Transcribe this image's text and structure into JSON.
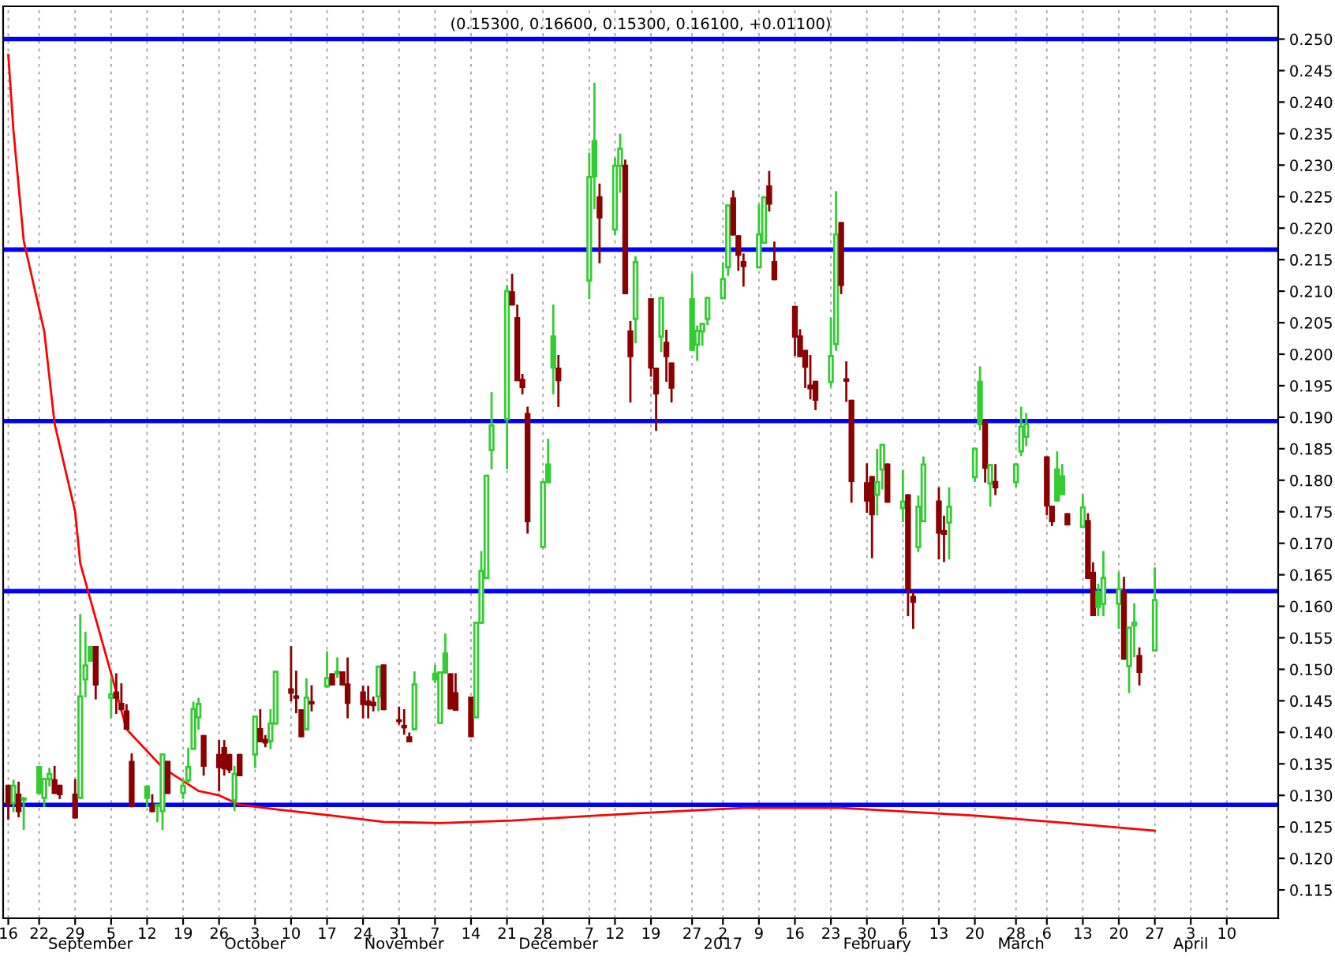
{
  "chart_data": {
    "type": "candlestick",
    "title": "(0.15300, 0.16600, 0.15300, 0.16100, +0.01100)",
    "x": [
      "2016-08-16",
      "2016-08-17",
      "2016-08-18",
      "2016-08-19",
      "2016-08-22",
      "2016-08-23",
      "2016-08-24",
      "2016-08-25",
      "2016-08-26",
      "2016-08-29",
      "2016-08-30",
      "2016-08-31",
      "2016-09-01",
      "2016-09-02",
      "2016-09-05",
      "2016-09-06",
      "2016-09-07",
      "2016-09-08",
      "2016-09-09",
      "2016-09-12",
      "2016-09-13",
      "2016-09-14",
      "2016-09-15",
      "2016-09-16",
      "2016-09-19",
      "2016-09-20",
      "2016-09-21",
      "2016-09-22",
      "2016-09-23",
      "2016-09-26",
      "2016-09-27",
      "2016-09-28",
      "2016-09-29",
      "2016-09-30",
      "2016-10-03",
      "2016-10-04",
      "2016-10-05",
      "2016-10-06",
      "2016-10-07",
      "2016-10-10",
      "2016-10-11",
      "2016-10-12",
      "2016-10-13",
      "2016-10-14",
      "2016-10-17",
      "2016-10-18",
      "2016-10-19",
      "2016-10-20",
      "2016-10-21",
      "2016-10-24",
      "2016-10-25",
      "2016-10-26",
      "2016-10-27",
      "2016-10-28",
      "2016-10-31",
      "2016-11-01",
      "2016-11-02",
      "2016-11-03",
      "2016-11-07",
      "2016-11-08",
      "2016-11-09",
      "2016-11-10",
      "2016-11-11",
      "2016-11-14",
      "2016-11-15",
      "2016-11-16",
      "2016-11-17",
      "2016-11-18",
      "2016-11-21",
      "2016-11-22",
      "2016-11-23",
      "2016-11-24",
      "2016-11-25",
      "2016-11-28",
      "2016-11-29",
      "2016-11-30",
      "2016-12-01",
      "2016-12-07",
      "2016-12-08",
      "2016-12-09",
      "2016-12-12",
      "2016-12-13",
      "2016-12-14",
      "2016-12-15",
      "2016-12-16",
      "2016-12-19",
      "2016-12-20",
      "2016-12-21",
      "2016-12-22",
      "2016-12-23",
      "2016-12-27",
      "2016-12-28",
      "2016-12-29",
      "2016-12-30",
      "2017-01-02",
      "2017-01-03",
      "2017-01-04",
      "2017-01-05",
      "2017-01-06",
      "2017-01-09",
      "2017-01-10",
      "2017-01-11",
      "2017-01-12",
      "2017-01-16",
      "2017-01-17",
      "2017-01-18",
      "2017-01-19",
      "2017-01-20",
      "2017-01-23",
      "2017-01-24",
      "2017-01-25",
      "2017-01-26",
      "2017-01-27",
      "2017-01-30",
      "2017-01-31",
      "2017-02-01",
      "2017-02-02",
      "2017-02-03",
      "2017-02-06",
      "2017-02-07",
      "2017-02-08",
      "2017-02-09",
      "2017-02-10",
      "2017-02-13",
      "2017-02-14",
      "2017-02-15",
      "2017-02-20",
      "2017-02-21",
      "2017-02-22",
      "2017-02-23",
      "2017-02-24",
      "2017-02-28",
      "2017-03-01",
      "2017-03-02",
      "2017-03-06",
      "2017-03-07",
      "2017-03-08",
      "2017-03-09",
      "2017-03-10",
      "2017-03-13",
      "2017-03-14",
      "2017-03-15",
      "2017-03-16",
      "2017-03-17",
      "2017-03-20",
      "2017-03-21",
      "2017-03-22",
      "2017-03-23",
      "2017-03-24",
      "2017-03-27"
    ],
    "ohlc": [
      [
        0.1315,
        0.1315,
        0.1263,
        0.1285
      ],
      [
        0.1288,
        0.1323,
        0.1275,
        0.1315
      ],
      [
        0.1301,
        0.132,
        0.1267,
        0.1275
      ],
      [
        0.1293,
        0.1296,
        0.1247,
        0.1295
      ],
      [
        0.1345,
        0.1345,
        0.1304,
        0.1304
      ],
      [
        0.1296,
        0.1326,
        0.1283,
        0.1326
      ],
      [
        0.1326,
        0.1342,
        0.1316,
        0.1334
      ],
      [
        0.1324,
        0.1345,
        0.1304,
        0.1304
      ],
      [
        0.1315,
        0.1315,
        0.1296,
        0.1302
      ],
      [
        0.1301,
        0.1324,
        0.1265,
        0.1265
      ],
      [
        0.1296,
        0.1586,
        0.1296,
        0.1457
      ],
      [
        0.1484,
        0.1558,
        0.1457,
        0.1506
      ],
      [
        0.1535,
        0.1535,
        0.1514,
        0.1514
      ],
      [
        0.1535,
        0.1535,
        0.1454,
        0.1476
      ],
      [
        0.1455,
        0.1486,
        0.1424,
        0.146
      ],
      [
        0.1463,
        0.1492,
        0.1431,
        0.1455
      ],
      [
        0.1445,
        0.1476,
        0.1437,
        0.1437
      ],
      [
        0.1433,
        0.1443,
        0.1406,
        0.1406
      ],
      [
        0.1353,
        0.1365,
        0.1283,
        0.1283
      ],
      [
        0.1314,
        0.1314,
        0.1283,
        0.1296
      ],
      [
        0.1283,
        0.13,
        0.1275,
        0.1275
      ],
      [
        0.1283,
        0.1285,
        0.1259,
        0.1285
      ],
      [
        0.1275,
        0.1365,
        0.1247,
        0.1365
      ],
      [
        0.1353,
        0.1353,
        0.1304,
        0.1304
      ],
      [
        0.1304,
        0.1324,
        0.1296,
        0.1315
      ],
      [
        0.1324,
        0.1374,
        0.132,
        0.1345
      ],
      [
        0.1374,
        0.1447,
        0.1374,
        0.1437
      ],
      [
        0.1424,
        0.1453,
        0.1406,
        0.1445
      ],
      [
        0.1394,
        0.1394,
        0.1333,
        0.1347
      ],
      [
        0.1364,
        0.1386,
        0.1308,
        0.1345
      ],
      [
        0.1375,
        0.1386,
        0.1333,
        0.1343
      ],
      [
        0.1364,
        0.1364,
        0.1337,
        0.1341
      ],
      [
        0.1292,
        0.1345,
        0.1277,
        0.1334
      ],
      [
        0.1364,
        0.1364,
        0.1332,
        0.1332
      ],
      [
        0.1365,
        0.1425,
        0.1345,
        0.1425
      ],
      [
        0.1405,
        0.1435,
        0.1386,
        0.1386
      ],
      [
        0.1388,
        0.1394,
        0.1378,
        0.1384
      ],
      [
        0.1386,
        0.1435,
        0.1375,
        0.1414
      ],
      [
        0.1414,
        0.1496,
        0.1414,
        0.1496
      ],
      [
        0.1468,
        0.1535,
        0.1451,
        0.1463
      ],
      [
        0.1457,
        0.1496,
        0.1432,
        0.1455
      ],
      [
        0.1435,
        0.1435,
        0.1394,
        0.1394
      ],
      [
        0.1405,
        0.1484,
        0.1405,
        0.1455
      ],
      [
        0.1448,
        0.1473,
        0.1435,
        0.1446
      ],
      [
        0.1473,
        0.1527,
        0.1473,
        0.1486
      ],
      [
        0.1492,
        0.1492,
        0.1476,
        0.1476
      ],
      [
        0.1494,
        0.1517,
        0.1488,
        0.1496
      ],
      [
        0.1495,
        0.1495,
        0.1476,
        0.1476
      ],
      [
        0.1476,
        0.1517,
        0.1424,
        0.1447
      ],
      [
        0.1463,
        0.1472,
        0.1424,
        0.1445
      ],
      [
        0.1449,
        0.1472,
        0.1424,
        0.1444
      ],
      [
        0.1447,
        0.1455,
        0.1435,
        0.1443
      ],
      [
        0.1457,
        0.1504,
        0.1435,
        0.1504
      ],
      [
        0.1506,
        0.1506,
        0.1437,
        0.1437
      ],
      [
        0.1419,
        0.1439,
        0.1414,
        0.1418
      ],
      [
        0.141,
        0.1435,
        0.1398,
        0.1408
      ],
      [
        0.1392,
        0.1398,
        0.1386,
        0.1386
      ],
      [
        0.1405,
        0.1495,
        0.1405,
        0.1476
      ],
      [
        0.1493,
        0.1505,
        0.148,
        0.1484
      ],
      [
        0.1415,
        0.1495,
        0.1415,
        0.1495
      ],
      [
        0.1525,
        0.1555,
        0.1495,
        0.1495
      ],
      [
        0.1492,
        0.1492,
        0.1438,
        0.1438
      ],
      [
        0.1462,
        0.1492,
        0.1436,
        0.1436
      ],
      [
        0.1455,
        0.1455,
        0.1394,
        0.1394
      ],
      [
        0.1424,
        0.1574,
        0.1424,
        0.1574
      ],
      [
        0.1574,
        0.1686,
        0.1574,
        0.1656
      ],
      [
        0.1645,
        0.1807,
        0.1645,
        0.1807
      ],
      [
        0.1848,
        0.1938,
        0.1819,
        0.1887
      ],
      [
        0.1897,
        0.2108,
        0.1819,
        0.21
      ],
      [
        0.2098,
        0.2126,
        0.2079,
        0.2079
      ],
      [
        0.2057,
        0.2077,
        0.1959,
        0.1959
      ],
      [
        0.1959,
        0.1967,
        0.1938,
        0.1948
      ],
      [
        0.1905,
        0.1915,
        0.1717,
        0.1735
      ],
      [
        0.1694,
        0.1797,
        0.1694,
        0.1797
      ],
      [
        0.1825,
        0.1864,
        0.1797,
        0.1797
      ],
      [
        0.2028,
        0.2077,
        0.1938,
        0.1979
      ],
      [
        0.1977,
        0.1997,
        0.1918,
        0.1959
      ],
      [
        0.2117,
        0.2318,
        0.2089,
        0.2281
      ],
      [
        0.2338,
        0.2429,
        0.2232,
        0.2282
      ],
      [
        0.2249,
        0.2269,
        0.2146,
        0.2217
      ],
      [
        0.2198,
        0.231,
        0.2191,
        0.2299
      ],
      [
        0.2299,
        0.2348,
        0.2258,
        0.2326
      ],
      [
        0.2299,
        0.2307,
        0.2097,
        0.2097
      ],
      [
        0.2036,
        0.2051,
        0.1925,
        0.1997
      ],
      [
        0.2056,
        0.2154,
        0.2019,
        0.2146
      ],
      [
        0.2087,
        0.2087,
        0.1966,
        0.1979
      ],
      [
        0.1977,
        0.1977,
        0.188,
        0.1938
      ],
      [
        0.2028,
        0.2089,
        0.2005,
        0.2089
      ],
      [
        0.2018,
        0.2037,
        0.1958,
        0.1997
      ],
      [
        0.1985,
        0.1985,
        0.1925,
        0.1947
      ],
      [
        0.2087,
        0.2126,
        0.2007,
        0.2007
      ],
      [
        0.2015,
        0.2044,
        0.1991,
        0.2037
      ],
      [
        0.2036,
        0.2048,
        0.2015,
        0.2048
      ],
      [
        0.2056,
        0.2089,
        0.2048,
        0.2089
      ],
      [
        0.2089,
        0.2144,
        0.2089,
        0.2119
      ],
      [
        0.2138,
        0.2236,
        0.2126,
        0.2236
      ],
      [
        0.2247,
        0.2258,
        0.219,
        0.219
      ],
      [
        0.2187,
        0.2187,
        0.2134,
        0.2158
      ],
      [
        0.2146,
        0.2158,
        0.2109,
        0.214
      ],
      [
        0.2138,
        0.2236,
        0.2138,
        0.219
      ],
      [
        0.2177,
        0.2249,
        0.2177,
        0.2249
      ],
      [
        0.2266,
        0.2289,
        0.2228,
        0.2239
      ],
      [
        0.2146,
        0.2177,
        0.2119,
        0.2119
      ],
      [
        0.2075,
        0.2075,
        0.1999,
        0.2028
      ],
      [
        0.2028,
        0.2038,
        0.1997,
        0.1997
      ],
      [
        0.2005,
        0.2005,
        0.1948,
        0.198
      ],
      [
        0.195,
        0.1997,
        0.193,
        0.1946
      ],
      [
        0.1956,
        0.1956,
        0.1913,
        0.1928
      ],
      [
        0.1956,
        0.2056,
        0.195,
        0.1997
      ],
      [
        0.2016,
        0.2257,
        0.2007,
        0.219
      ],
      [
        0.2208,
        0.2208,
        0.2097,
        0.211
      ],
      [
        0.196,
        0.1987,
        0.1926,
        0.1958
      ],
      [
        0.1926,
        0.1926,
        0.1766,
        0.1799
      ],
      [
        0.1795,
        0.1825,
        0.175,
        0.1768
      ],
      [
        0.1805,
        0.1805,
        0.1678,
        0.1746
      ],
      [
        0.1777,
        0.1848,
        0.1746,
        0.1797
      ],
      [
        0.1817,
        0.1856,
        0.1787,
        0.1856
      ],
      [
        0.1825,
        0.1825,
        0.1766,
        0.1766
      ],
      [
        0.1756,
        0.1815,
        0.1735,
        0.1766
      ],
      [
        0.1776,
        0.1776,
        0.1586,
        0.1627
      ],
      [
        0.1615,
        0.1623,
        0.1566,
        0.1607
      ],
      [
        0.1694,
        0.1774,
        0.1688,
        0.1758
      ],
      [
        0.1735,
        0.1836,
        0.1735,
        0.1825
      ],
      [
        0.1766,
        0.1787,
        0.1676,
        0.1717
      ],
      [
        0.1719,
        0.1742,
        0.1672,
        0.1715
      ],
      [
        0.1733,
        0.1787,
        0.1676,
        0.1758
      ],
      [
        0.1805,
        0.185,
        0.1799,
        0.185
      ],
      [
        0.1956,
        0.1979,
        0.1881,
        0.1889
      ],
      [
        0.1893,
        0.1893,
        0.1798,
        0.182
      ],
      [
        0.1795,
        0.1824,
        0.176,
        0.1824
      ],
      [
        0.1797,
        0.1824,
        0.1778,
        0.1789
      ],
      [
        0.1797,
        0.1825,
        0.1791,
        0.1825
      ],
      [
        0.1846,
        0.1915,
        0.184,
        0.1885
      ],
      [
        0.1869,
        0.1905,
        0.1856,
        0.1889
      ],
      [
        0.1836,
        0.1836,
        0.1746,
        0.176
      ],
      [
        0.1758,
        0.1758,
        0.1729,
        0.1735
      ],
      [
        0.1817,
        0.1844,
        0.1768,
        0.1768
      ],
      [
        0.1806,
        0.1824,
        0.1778,
        0.1778
      ],
      [
        0.1746,
        0.1746,
        0.173,
        0.173
      ],
      [
        0.1726,
        0.1776,
        0.1726,
        0.1757
      ],
      [
        0.1735,
        0.1746,
        0.1645,
        0.1645
      ],
      [
        0.1653,
        0.1668,
        0.1586,
        0.1586
      ],
      [
        0.1623,
        0.1634,
        0.1586,
        0.1599
      ],
      [
        0.1604,
        0.1686,
        0.1586,
        0.1645
      ],
      [
        0.1604,
        0.1652,
        0.1566,
        0.1627
      ],
      [
        0.1623,
        0.1645,
        0.1517,
        0.1517
      ],
      [
        0.1505,
        0.1566,
        0.1464,
        0.1566
      ],
      [
        0.157,
        0.1603,
        0.1521,
        0.1574
      ],
      [
        0.1521,
        0.1533,
        0.1476,
        0.1496
      ],
      [
        0.153,
        0.166,
        0.153,
        0.161
      ]
    ],
    "colors": [
      "#8b0000",
      "#33cc33",
      "#8b0000",
      "#33cc33",
      "#33cc33",
      "#33cc33",
      "#33cc33",
      "#8b0000",
      "#8b0000",
      "#8b0000",
      "#33cc33",
      "#33cc33",
      "#33cc33",
      "#8b0000",
      "#33cc33",
      "#8b0000",
      "#8b0000",
      "#8b0000",
      "#8b0000",
      "#33cc33",
      "#8b0000",
      "#33cc33",
      "#33cc33",
      "#8b0000",
      "#33cc33",
      "#33cc33",
      "#33cc33",
      "#33cc33",
      "#8b0000",
      "#8b0000",
      "#8b0000",
      "#8b0000",
      "#33cc33",
      "#8b0000",
      "#33cc33",
      "#8b0000",
      "#8b0000",
      "#33cc33",
      "#33cc33",
      "#8b0000",
      "#8b0000",
      "#8b0000",
      "#33cc33",
      "#8b0000",
      "#33cc33",
      "#8b0000",
      "#33cc33",
      "#8b0000",
      "#8b0000",
      "#8b0000",
      "#8b0000",
      "#8b0000",
      "#33cc33",
      "#8b0000",
      "#8b0000",
      "#8b0000",
      "#8b0000",
      "#33cc33",
      "#33cc33",
      "#33cc33",
      "#33cc33",
      "#8b0000",
      "#8b0000",
      "#8b0000",
      "#33cc33",
      "#33cc33",
      "#33cc33",
      "#33cc33",
      "#33cc33",
      "#8b0000",
      "#8b0000",
      "#8b0000",
      "#8b0000",
      "#33cc33",
      "#33cc33",
      "#33cc33",
      "#8b0000",
      "#33cc33",
      "#33cc33",
      "#8b0000",
      "#33cc33",
      "#33cc33",
      "#8b0000",
      "#8b0000",
      "#33cc33",
      "#8b0000",
      "#8b0000",
      "#33cc33",
      "#8b0000",
      "#8b0000",
      "#33cc33",
      "#33cc33",
      "#33cc33",
      "#33cc33",
      "#33cc33",
      "#33cc33",
      "#8b0000",
      "#8b0000",
      "#8b0000",
      "#33cc33",
      "#33cc33",
      "#8b0000",
      "#8b0000",
      "#8b0000",
      "#8b0000",
      "#8b0000",
      "#8b0000",
      "#8b0000",
      "#33cc33",
      "#33cc33",
      "#8b0000",
      "#8b0000",
      "#8b0000",
      "#8b0000",
      "#8b0000",
      "#33cc33",
      "#33cc33",
      "#8b0000",
      "#33cc33",
      "#8b0000",
      "#8b0000",
      "#33cc33",
      "#33cc33",
      "#8b0000",
      "#8b0000",
      "#33cc33",
      "#33cc33",
      "#33cc33",
      "#8b0000",
      "#33cc33",
      "#8b0000",
      "#33cc33",
      "#33cc33",
      "#33cc33",
      "#8b0000",
      "#8b0000",
      "#33cc33",
      "#33cc33",
      "#8b0000",
      "#33cc33",
      "#8b0000",
      "#8b0000",
      "#33cc33",
      "#33cc33",
      "#33cc33",
      "#8b0000",
      "#33cc33",
      "#33cc33",
      "#8b0000",
      "#33cc33"
    ],
    "series": [
      {
        "type": "line",
        "color": "#ff0000",
        "x": [
          "2016-08-16",
          "2016-08-17",
          "2016-08-19",
          "2016-08-23",
          "2016-08-25",
          "2016-08-29",
          "2016-08-30",
          "2016-09-06",
          "2016-09-08",
          "2016-09-15",
          "2016-09-22",
          "2016-09-26",
          "2016-09-30",
          "2016-10-07",
          "2016-10-18",
          "2016-10-28",
          "2016-11-08",
          "2016-11-22",
          "2016-12-15",
          "2017-01-06",
          "2017-01-25",
          "2017-02-20",
          "2017-03-10",
          "2017-03-27"
        ],
        "values": [
          0.2475,
          0.2355,
          0.218,
          0.2036,
          0.189,
          0.175,
          0.1668,
          0.1464,
          0.1405,
          0.1344,
          0.1307,
          0.13,
          0.1285,
          0.1278,
          0.1268,
          0.1258,
          0.1256,
          0.126,
          0.1271,
          0.128,
          0.128,
          0.1268,
          0.1256,
          0.1244
        ]
      }
    ],
    "ref_lines": [
      {
        "axis": "y",
        "value": 0.25,
        "color": "#0000ff"
      },
      {
        "axis": "y",
        "value": 0.2166,
        "color": "#0000ff"
      },
      {
        "axis": "y",
        "value": 0.1894,
        "color": "#0000ff"
      },
      {
        "axis": "y",
        "value": 0.1624,
        "color": "#0000ff"
      },
      {
        "axis": "y",
        "value": 0.1285,
        "color": "#0000ff"
      }
    ],
    "xlim": [
      "2016-08-15",
      "2017-04-20"
    ],
    "ylim": [
      0.1105,
      0.2552
    ],
    "yticks": [
      {
        "value": 0.115,
        "label": "0.115"
      },
      {
        "value": 0.12,
        "label": "0.120"
      },
      {
        "value": 0.125,
        "label": "0.125"
      },
      {
        "value": 0.13,
        "label": "0.130"
      },
      {
        "value": 0.135,
        "label": "0.135"
      },
      {
        "value": 0.14,
        "label": "0.140"
      },
      {
        "value": 0.145,
        "label": "0.145"
      },
      {
        "value": 0.15,
        "label": "0.150"
      },
      {
        "value": 0.155,
        "label": "0.155"
      },
      {
        "value": 0.16,
        "label": "0.160"
      },
      {
        "value": 0.165,
        "label": "0.165"
      },
      {
        "value": 0.17,
        "label": "0.170"
      },
      {
        "value": 0.175,
        "label": "0.175"
      },
      {
        "value": 0.18,
        "label": "0.180"
      },
      {
        "value": 0.185,
        "label": "0.185"
      },
      {
        "value": 0.19,
        "label": "0.190"
      },
      {
        "value": 0.195,
        "label": "0.195"
      },
      {
        "value": 0.2,
        "label": "0.200"
      },
      {
        "value": 0.205,
        "label": "0.205"
      },
      {
        "value": 0.21,
        "label": "0.210"
      },
      {
        "value": 0.215,
        "label": "0.215"
      },
      {
        "value": 0.22,
        "label": "0.220"
      },
      {
        "value": 0.225,
        "label": "0.225"
      },
      {
        "value": 0.23,
        "label": "0.230"
      },
      {
        "value": 0.235,
        "label": "0.235"
      },
      {
        "value": 0.24,
        "label": "0.240"
      },
      {
        "value": 0.245,
        "label": "0.245"
      },
      {
        "value": 0.25,
        "label": "0.250"
      }
    ],
    "xticks": [
      {
        "value": "2016-08-16",
        "label": "16"
      },
      {
        "value": "2016-08-22",
        "label": "22"
      },
      {
        "value": "2016-08-29",
        "label": "29"
      },
      {
        "value": "2016-09-05",
        "label": "5"
      },
      {
        "value": "2016-09-12",
        "label": "12"
      },
      {
        "value": "2016-09-19",
        "label": "19"
      },
      {
        "value": "2016-09-26",
        "label": "26"
      },
      {
        "value": "2016-10-03",
        "label": "3"
      },
      {
        "value": "2016-10-10",
        "label": "10"
      },
      {
        "value": "2016-10-17",
        "label": "17"
      },
      {
        "value": "2016-10-24",
        "label": "24"
      },
      {
        "value": "2016-10-31",
        "label": "31"
      },
      {
        "value": "2016-11-07",
        "label": "7"
      },
      {
        "value": "2016-11-14",
        "label": "14"
      },
      {
        "value": "2016-11-21",
        "label": "21"
      },
      {
        "value": "2016-11-28",
        "label": "28"
      },
      {
        "value": "2016-12-07",
        "label": "7"
      },
      {
        "value": "2016-12-12",
        "label": "12"
      },
      {
        "value": "2016-12-19",
        "label": "19"
      },
      {
        "value": "2016-12-27",
        "label": "27"
      },
      {
        "value": "2017-01-02",
        "label": "2"
      },
      {
        "value": "2017-01-09",
        "label": "9"
      },
      {
        "value": "2017-01-16",
        "label": "16"
      },
      {
        "value": "2017-01-23",
        "label": "23"
      },
      {
        "value": "2017-01-30",
        "label": "30"
      },
      {
        "value": "2017-02-06",
        "label": "6"
      },
      {
        "value": "2017-02-13",
        "label": "13"
      },
      {
        "value": "2017-02-20",
        "label": "20"
      },
      {
        "value": "2017-02-28",
        "label": "28"
      },
      {
        "value": "2017-03-06",
        "label": "6"
      },
      {
        "value": "2017-03-13",
        "label": "13"
      },
      {
        "value": "2017-03-20",
        "label": "20"
      },
      {
        "value": "2017-03-27",
        "label": "27"
      },
      {
        "value": "2017-04-03",
        "label": "3"
      },
      {
        "value": "2017-04-10",
        "label": "10"
      }
    ],
    "x2ticks": [
      {
        "value": "2016-09-01",
        "label": "September"
      },
      {
        "value": "2016-10-03",
        "label": "October"
      },
      {
        "value": "2016-11-01",
        "label": "November"
      },
      {
        "value": "2016-12-01",
        "label": "December"
      },
      {
        "value": "2017-01-02",
        "label": "2017"
      },
      {
        "value": "2017-02-01",
        "label": "February"
      },
      {
        "value": "2017-03-01",
        "label": "March"
      },
      {
        "value": "2017-04-03",
        "label": "April"
      }
    ],
    "x2lim": [
      "2016-08-15",
      "2017-04-20"
    ],
    "grid": "x"
  }
}
